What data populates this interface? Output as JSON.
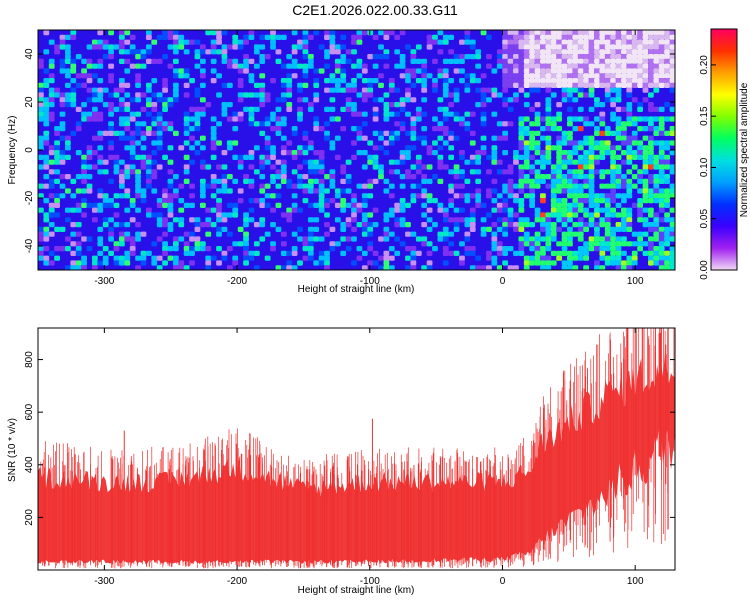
{
  "figure_title": "C2E1.2026.022.00.33.G11",
  "chart_data": [
    {
      "type": "heatmap",
      "title": "",
      "xlabel": "Height of straight line (km)",
      "ylabel": "Frequency (Hz)",
      "xlim": [
        -350,
        130
      ],
      "ylim": [
        -50,
        50
      ],
      "xticks": [
        -300,
        -200,
        -100,
        0,
        100
      ],
      "yticks": [
        -40,
        -20,
        0,
        20,
        40
      ],
      "grid": false,
      "colorbar": {
        "label": "Normalized spectral amplitude",
        "ticks": [
          "0.00",
          "0.05",
          "0.10",
          "0.15",
          "0.20"
        ],
        "range": [
          0,
          0.235
        ],
        "colormap": [
          "#f0d8f4",
          "#a020f0",
          "#3a00ff",
          "#0030ff",
          "#00a0ff",
          "#00e0e0",
          "#00ff60",
          "#80ff00",
          "#ffff00",
          "#ffa000",
          "#ff3000",
          "#ff0060"
        ]
      },
      "regions": [
        {
          "x": [
            -350,
            130
          ],
          "y": [
            -50,
            50
          ],
          "amplitude": 0.06
        },
        {
          "x": 0,
          "y": [
            25,
            50
          ],
          "amplitude": 0.01
        },
        {
          "x": [
            10,
            130
          ],
          "y": [
            -45,
            15
          ],
          "amplitude": 0.09
        }
      ],
      "colors": {
        "background": "#2a10e8",
        "speckle": "#00d8ff",
        "hotspot": "#00ff70"
      }
    },
    {
      "type": "line",
      "title": "",
      "xlabel": "Height of straight line (km)",
      "ylabel": "SNR (10 * v/v)",
      "xlim": [
        -350,
        130
      ],
      "ylim": [
        0,
        920
      ],
      "xticks": [
        -300,
        -200,
        -100,
        0,
        100
      ],
      "yticks": [
        200,
        400,
        600,
        800
      ],
      "grid": false,
      "series": [
        {
          "color": "#f03030",
          "envelope": {
            "x": [
              -350,
              -300,
              -250,
              -200,
              -150,
              -100,
              -50,
              0,
              20,
              30,
              50,
              75,
              100,
              130
            ],
            "low": [
              30,
              30,
              30,
              30,
              30,
              30,
              35,
              40,
              60,
              110,
              180,
              260,
              360,
              480
            ],
            "high": [
              380,
              360,
              360,
              420,
              330,
              360,
              360,
              360,
              400,
              520,
              600,
              700,
              780,
              830
            ]
          },
          "peaks": [
            {
              "x": -322,
              "y": 440
            },
            {
              "x": -285,
              "y": 530
            },
            {
              "x": -200,
              "y": 480
            },
            {
              "x": -98,
              "y": 575
            },
            {
              "x": 100,
              "y": 920
            },
            {
              "x": 118,
              "y": 900
            }
          ]
        }
      ]
    }
  ]
}
